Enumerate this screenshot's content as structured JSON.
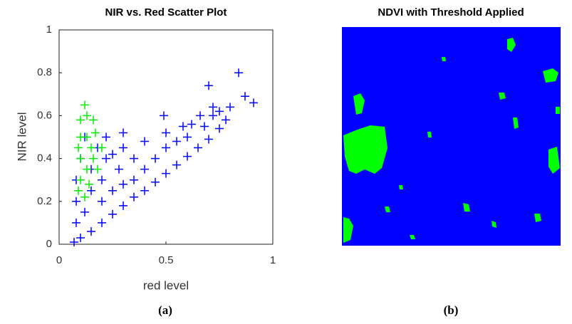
{
  "chart_data": [
    {
      "type": "scatter",
      "title": "NIR vs. Red Scatter Plot",
      "xlabel": "red level",
      "ylabel": "NIR level",
      "xlim": [
        0,
        1
      ],
      "ylim": [
        0,
        1
      ],
      "xticks": [
        0,
        0.5,
        1
      ],
      "yticks": [
        0,
        0.2,
        0.4,
        0.6,
        0.8,
        1
      ],
      "marker": "+",
      "series": [
        {
          "color": "#0000ff",
          "x": [
            0.07,
            0.1,
            0.15,
            0.2,
            0.25,
            0.3,
            0.35,
            0.4,
            0.45,
            0.5,
            0.55,
            0.6,
            0.65,
            0.7,
            0.75,
            0.78,
            0.08,
            0.08,
            0.08,
            0.1,
            0.12,
            0.12,
            0.15,
            0.15,
            0.18,
            0.2,
            0.2,
            0.22,
            0.22,
            0.25,
            0.28,
            0.3,
            0.3,
            0.35,
            0.35,
            0.4,
            0.4,
            0.45,
            0.5,
            0.5,
            0.55,
            0.6,
            0.62,
            0.68,
            0.72,
            0.75,
            0.3,
            0.25,
            0.84,
            0.7,
            0.87,
            0.91,
            0.49,
            0.8,
            0.72,
            0.66,
            0.58
          ],
          "values": [
            0.01,
            0.03,
            0.06,
            0.1,
            0.14,
            0.18,
            0.22,
            0.25,
            0.29,
            0.33,
            0.37,
            0.41,
            0.45,
            0.49,
            0.54,
            0.58,
            0.1,
            0.2,
            0.3,
            0.4,
            0.5,
            0.15,
            0.25,
            0.35,
            0.45,
            0.2,
            0.3,
            0.4,
            0.5,
            0.25,
            0.35,
            0.45,
            0.52,
            0.3,
            0.4,
            0.35,
            0.48,
            0.4,
            0.45,
            0.52,
            0.48,
            0.5,
            0.56,
            0.55,
            0.6,
            0.62,
            0.28,
            0.42,
            0.8,
            0.74,
            0.69,
            0.66,
            0.6,
            0.64,
            0.64,
            0.6,
            0.55
          ]
        },
        {
          "color": "#00ee00",
          "x": [
            0.09,
            0.1,
            0.12,
            0.14,
            0.1,
            0.13,
            0.16,
            0.2,
            0.1,
            0.13,
            0.17,
            0.1,
            0.13,
            0.16,
            0.12,
            0.09,
            0.15,
            0.18
          ],
          "values": [
            0.25,
            0.3,
            0.22,
            0.28,
            0.4,
            0.35,
            0.4,
            0.45,
            0.5,
            0.5,
            0.52,
            0.58,
            0.6,
            0.58,
            0.65,
            0.45,
            0.45,
            0.35
          ]
        }
      ]
    },
    {
      "type": "image",
      "title": "NDVI with Threshold Applied",
      "colors": [
        "#0000ff",
        "#00ff00"
      ]
    }
  ],
  "captions": [
    "(a)",
    "(b)"
  ]
}
